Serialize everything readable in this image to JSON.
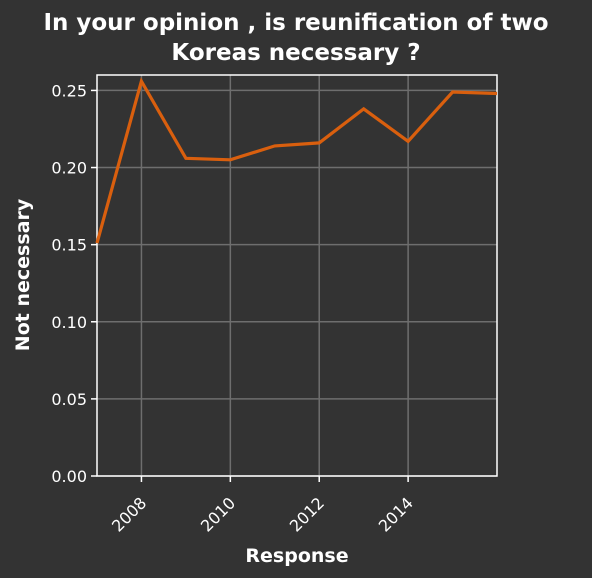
{
  "chart_data": {
    "type": "line",
    "title_lines": [
      "In your opinion , is reunification of two",
      "Koreas necessary ?"
    ],
    "xlabel": "Response",
    "ylabel": "Not necessary",
    "x": [
      2007,
      2008,
      2009,
      2010,
      2011,
      2012,
      2013,
      2014,
      2015,
      2016
    ],
    "series": [
      {
        "values": [
          0.151,
          0.256,
          0.206,
          0.205,
          0.214,
          0.216,
          0.238,
          0.217,
          0.249,
          0.248
        ]
      }
    ],
    "xlim": [
      2007,
      2016
    ],
    "ylim": [
      0,
      0.26
    ],
    "xticks": [
      2008,
      2010,
      2012,
      2014
    ],
    "xtick_labels": [
      "2008",
      "2010",
      "2012",
      "2014"
    ],
    "yticks": [
      0,
      0.05,
      0.1,
      0.15,
      0.2,
      0.25
    ],
    "ytick_labels": [
      "0.00",
      "0.05",
      "0.10",
      "0.15",
      "0.20",
      "0.25"
    ],
    "grid": true,
    "colors": {
      "background": "#333333",
      "line": "#d95f0e",
      "grid": "#6e6e6e",
      "axis": "#ffffff",
      "text": "#ffffff"
    }
  }
}
